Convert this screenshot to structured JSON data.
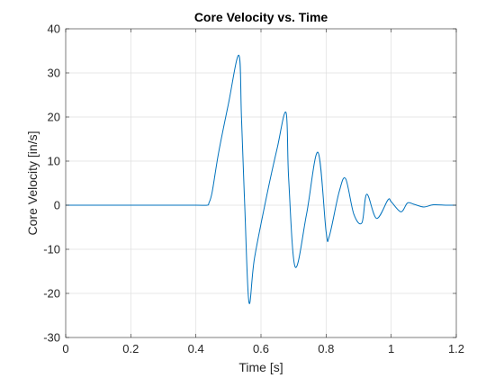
{
  "chart_data": {
    "type": "line",
    "title": "Core Velocity vs. Time",
    "xlabel": "Time [s]",
    "ylabel": "Core Velocity [in/s]",
    "xlim": [
      0,
      1.2
    ],
    "ylim": [
      -30,
      40
    ],
    "xticks": [
      0,
      0.2,
      0.4,
      0.6,
      0.8,
      1,
      1.2
    ],
    "xtick_labels": [
      "0",
      "0.2",
      "0.4",
      "0.6",
      "0.8",
      "1",
      "1.2"
    ],
    "yticks": [
      -30,
      -20,
      -10,
      0,
      10,
      20,
      30,
      40
    ],
    "ytick_labels": [
      "-30",
      "-20",
      "-10",
      "0",
      "10",
      "20",
      "30",
      "40"
    ],
    "grid": true,
    "line_color": "#0072BD",
    "series": [
      {
        "x": [
          0,
          0.1,
          0.2,
          0.3,
          0.4,
          0.435,
          0.44,
          0.45,
          0.47,
          0.5,
          0.532,
          0.54,
          0.55,
          0.563,
          0.58,
          0.62,
          0.65,
          0.677,
          0.685,
          0.705,
          0.74,
          0.775,
          0.8,
          0.81,
          0.84,
          0.86,
          0.885,
          0.91,
          0.925,
          0.955,
          0.99,
          1.0,
          1.03,
          1.05,
          1.07,
          1.1,
          1.13,
          1.17,
          1.2
        ],
        "y": [
          0,
          0,
          0,
          0,
          0,
          0,
          0.5,
          3,
          12,
          23,
          34,
          20,
          0,
          -22,
          -12,
          3,
          13,
          21,
          6,
          -14,
          -2,
          12,
          -6,
          -7,
          3,
          6,
          -2,
          -4,
          2.5,
          -3,
          1.2,
          0.8,
          -1.5,
          0.5,
          0.2,
          -0.4,
          0.1,
          0,
          0
        ]
      }
    ]
  }
}
